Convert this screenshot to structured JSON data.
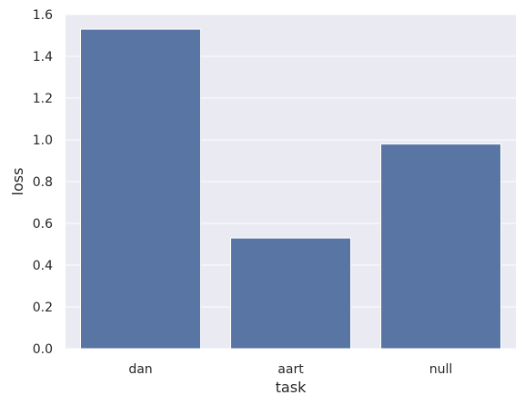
{
  "chart_data": {
    "type": "bar",
    "categories": [
      "dan",
      "aart",
      "null"
    ],
    "values": [
      1.53,
      0.53,
      0.98
    ],
    "xlabel": "task",
    "ylabel": "loss",
    "ylim": [
      0,
      1.6
    ],
    "yticks": [
      "0.0",
      "0.2",
      "0.4",
      "0.6",
      "0.8",
      "1.0",
      "1.2",
      "1.4",
      "1.6"
    ],
    "grid": true,
    "legend": "none",
    "colors": {
      "bar": "#5975a4",
      "plot_background": "#eaeaf2",
      "grid": "#ffffff"
    }
  }
}
